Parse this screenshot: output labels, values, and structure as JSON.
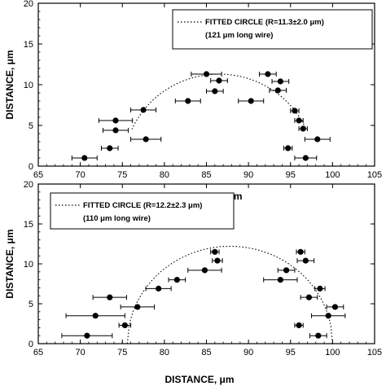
{
  "chart_data": [
    {
      "type": "scatter",
      "xlabel": "DISTANCE, μm",
      "ylabel": "DISTANCE, μm",
      "xlim": [
        65,
        105
      ],
      "ylim": [
        0,
        20
      ],
      "xticks": [
        "65",
        "70",
        "75",
        "80",
        "85",
        "90",
        "95",
        "100",
        "105"
      ],
      "yticks": [
        "0",
        "5",
        "10",
        "15",
        "20"
      ],
      "legend": {
        "line1": "FITTED CIRCLE (R=11.3±2.0 μm)",
        "line2": "(121 μm long wire)",
        "placement": "top-right"
      },
      "fit": {
        "center_x": 86.5,
        "radius": 11.3,
        "ymin": 4.3,
        "style": "dotted"
      },
      "points": [
        {
          "x": 70.5,
          "y": 1.0,
          "xerr": 1.5
        },
        {
          "x": 73.5,
          "y": 2.2,
          "xerr": 1.0
        },
        {
          "x": 74.2,
          "y": 4.4,
          "xerr": 1.5
        },
        {
          "x": 74.2,
          "y": 5.6,
          "xerr": 2.0
        },
        {
          "x": 77.8,
          "y": 3.3,
          "xerr": 1.8
        },
        {
          "x": 77.5,
          "y": 6.9,
          "xerr": 1.5
        },
        {
          "x": 82.8,
          "y": 8.0,
          "xerr": 1.5
        },
        {
          "x": 85.0,
          "y": 11.3,
          "xerr": 1.8
        },
        {
          "x": 86.5,
          "y": 10.5,
          "xerr": 1.0
        },
        {
          "x": 86.0,
          "y": 9.2,
          "xerr": 1.0
        },
        {
          "x": 90.3,
          "y": 8.0,
          "xerr": 1.5
        },
        {
          "x": 92.3,
          "y": 11.3,
          "xerr": 1.0
        },
        {
          "x": 93.8,
          "y": 10.4,
          "xerr": 1.0
        },
        {
          "x": 93.5,
          "y": 9.3,
          "xerr": 1.0
        },
        {
          "x": 95.5,
          "y": 6.8,
          "xerr": 0.5
        },
        {
          "x": 96.0,
          "y": 5.6,
          "xerr": 0.5
        },
        {
          "x": 96.5,
          "y": 4.6,
          "xerr": 0.5
        },
        {
          "x": 98.2,
          "y": 3.3,
          "xerr": 1.5
        },
        {
          "x": 94.7,
          "y": 2.2,
          "xerr": 0.5
        },
        {
          "x": 96.8,
          "y": 1.0,
          "xerr": 1.3
        }
      ]
    },
    {
      "type": "scatter",
      "xlabel": "DISTANCE, μm",
      "ylabel": "DISTANCE, μm",
      "xlim": [
        65,
        105
      ],
      "ylim": [
        0,
        20
      ],
      "xticks": [
        "65",
        "70",
        "75",
        "80",
        "85",
        "90",
        "95",
        "100",
        "105"
      ],
      "yticks": [
        "0",
        "5",
        "10",
        "15",
        "20"
      ],
      "legend": {
        "line1": "FITTED CIRCLE (R=12.2±2.3 μm)",
        "line2": "(110 μm long wire)",
        "placement": "top-left"
      },
      "fit": {
        "center_x": 87.8,
        "radius": 12.2,
        "ymin": 0,
        "style": "dotted"
      },
      "points": [
        {
          "x": 70.8,
          "y": 1.0,
          "xerr": 3.0
        },
        {
          "x": 75.3,
          "y": 2.3,
          "xerr": 0.7
        },
        {
          "x": 71.8,
          "y": 3.5,
          "xerr": 3.5
        },
        {
          "x": 76.8,
          "y": 4.6,
          "xerr": 2.0
        },
        {
          "x": 73.5,
          "y": 5.8,
          "xerr": 2.0
        },
        {
          "x": 79.3,
          "y": 6.9,
          "xerr": 1.5
        },
        {
          "x": 81.5,
          "y": 8.0,
          "xerr": 1.0
        },
        {
          "x": 84.8,
          "y": 9.2,
          "xerr": 2.0
        },
        {
          "x": 86.3,
          "y": 10.4,
          "xerr": 0.6
        },
        {
          "x": 86.0,
          "y": 11.5,
          "xerr": 0.5
        },
        {
          "x": 93.8,
          "y": 8.0,
          "xerr": 2.0
        },
        {
          "x": 94.5,
          "y": 9.2,
          "xerr": 1.0
        },
        {
          "x": 96.8,
          "y": 10.4,
          "xerr": 1.0
        },
        {
          "x": 96.2,
          "y": 11.5,
          "xerr": 0.5
        },
        {
          "x": 98.5,
          "y": 6.9,
          "xerr": 0.6
        },
        {
          "x": 97.2,
          "y": 5.8,
          "xerr": 1.0
        },
        {
          "x": 100.3,
          "y": 4.6,
          "xerr": 1.0
        },
        {
          "x": 99.5,
          "y": 3.5,
          "xerr": 2.0
        },
        {
          "x": 96.0,
          "y": 2.3,
          "xerr": 0.5
        },
        {
          "x": 98.3,
          "y": 1.0,
          "xerr": 1.0
        }
      ]
    }
  ]
}
